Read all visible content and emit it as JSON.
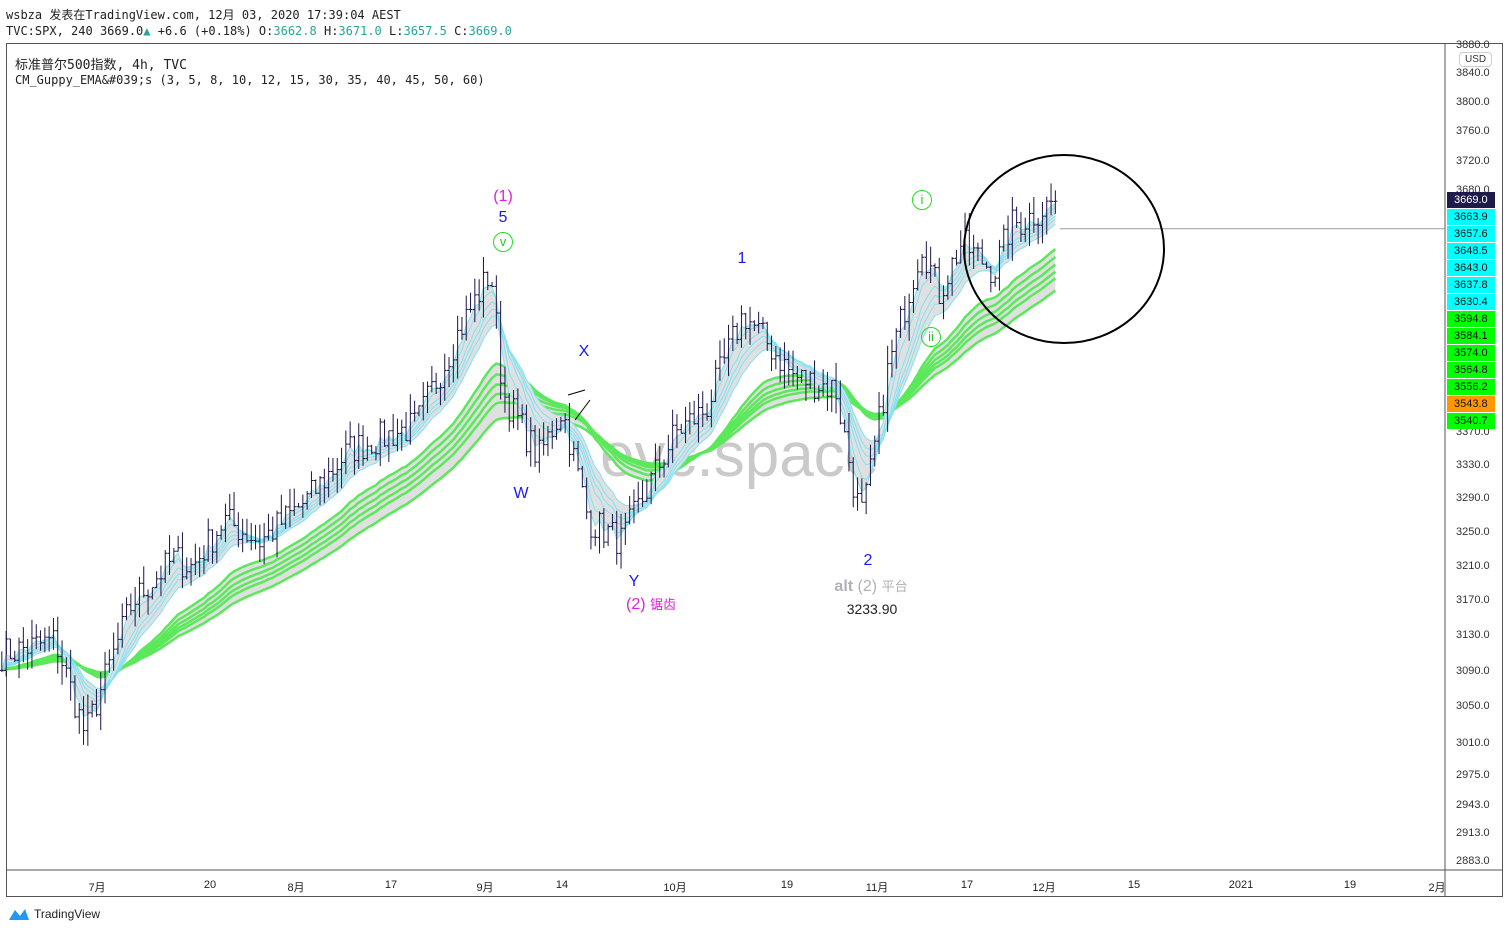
{
  "header": {
    "line1": "wsbza 发表在TradingView.com, 12月 03, 2020 17:39:04 AEST",
    "symbol": "TVC:SPX, 240",
    "last": "3669.0",
    "change": "+6.6 (+0.18%)",
    "o_label": "O:",
    "o": "3662.8",
    "h_label": "H:",
    "h": "3671.0",
    "l_label": "L:",
    "l": "3657.5",
    "c_label": "C:",
    "c": "3669.0"
  },
  "legend": {
    "title": "标准普尔500指数, 4h, TVC",
    "indicator": "CM_Guppy_EMA&#039;s (3, 5, 8, 10, 12, 15, 30, 35, 40, 45, 50, 60)"
  },
  "currency": "USD",
  "watermark": "evc.space",
  "footer": {
    "brand": "TradingView"
  },
  "colors": {
    "bar": "#1a1446",
    "short_ema": "#7fe3f5",
    "long_ema": "#5be85b",
    "ribbon_fill": "#e0e0e0",
    "bear": "#f04040",
    "last_price_bg": "#1e1a4a",
    "cyan_tag": "#00ffff",
    "green_tag": "#00ff00",
    "orange_tag": "#ff9800"
  },
  "price_tags": [
    {
      "v": "3669.0",
      "bg": "#1e1a4a",
      "fg": "#fff"
    },
    {
      "v": "3663.9",
      "bg": "#00ffff"
    },
    {
      "v": "3657.6",
      "bg": "#00ffff"
    },
    {
      "v": "3648.5",
      "bg": "#00ffff"
    },
    {
      "v": "3643.0",
      "bg": "#00ffff"
    },
    {
      "v": "3637.8",
      "bg": "#00ffff"
    },
    {
      "v": "3630.4",
      "bg": "#00ffff"
    },
    {
      "v": "3594.8",
      "bg": "#00ff00"
    },
    {
      "v": "3584.1",
      "bg": "#00ff00"
    },
    {
      "v": "3574.0",
      "bg": "#00ff00"
    },
    {
      "v": "3564.8",
      "bg": "#00ff00"
    },
    {
      "v": "3556.2",
      "bg": "#00ff00"
    },
    {
      "v": "3543.8",
      "bg": "#ff9800"
    },
    {
      "v": "3540.7",
      "bg": "#00ff00"
    }
  ],
  "annotations": {
    "w1": "(1)",
    "w5": "5",
    "wv": "v",
    "wX": "X",
    "wW": "W",
    "wY": "Y",
    "w2p": "(2)",
    "w2p_sub": "锯齿",
    "w1b": "1",
    "w2": "2",
    "alt": "alt",
    "alt2": "(2)",
    "alt_sub": "平台",
    "low": "3233.90",
    "wi": "i",
    "wii": "ii"
  },
  "chart_data": {
    "type": "candlestick-ohlc-bars",
    "title": "标准普尔500指数, 4h, TVC",
    "y_scale": "log",
    "ylim": [
      2883,
      3880
    ],
    "y_ticks": [
      "3880.0",
      "3840.0",
      "3800.0",
      "3760.0",
      "3720.0",
      "3680.0",
      "3370.0",
      "3330.0",
      "3290.0",
      "3250.0",
      "3210.0",
      "3170.0",
      "3130.0",
      "3090.0",
      "3050.0",
      "3010.0",
      "2975.0",
      "2943.0",
      "2913.0",
      "2883.0"
    ],
    "x_ticks": [
      {
        "label": "7月",
        "date": "2020-07-01"
      },
      {
        "label": "20",
        "date": "2020-07-20"
      },
      {
        "label": "8月",
        "date": "2020-08-01"
      },
      {
        "label": "17",
        "date": "2020-08-17"
      },
      {
        "label": "9月",
        "date": "2020-09-01"
      },
      {
        "label": "14",
        "date": "2020-09-14"
      },
      {
        "label": "10月",
        "date": "2020-10-01"
      },
      {
        "label": "19",
        "date": "2020-10-19"
      },
      {
        "label": "11月",
        "date": "2020-11-01"
      },
      {
        "label": "17",
        "date": "2020-11-17"
      },
      {
        "label": "12月",
        "date": "2020-12-01"
      },
      {
        "label": "15",
        "date": "2020-12-15"
      },
      {
        "label": "2021",
        "date": "2021-01-01"
      },
      {
        "label": "19",
        "date": "2021-01-19"
      },
      {
        "label": "2月",
        "date": "2021-02-01"
      }
    ],
    "approx_close": [
      [
        "2020-06-15",
        3110
      ],
      [
        "2020-06-24",
        3125
      ],
      [
        "2020-06-29",
        3020
      ],
      [
        "2020-07-07",
        3170
      ],
      [
        "2020-07-14",
        3220
      ],
      [
        "2020-07-17",
        3210
      ],
      [
        "2020-07-22",
        3265
      ],
      [
        "2020-07-27",
        3240
      ],
      [
        "2020-08-03",
        3290
      ],
      [
        "2020-08-10",
        3350
      ],
      [
        "2020-08-21",
        3380
      ],
      [
        "2020-08-28",
        3500
      ],
      [
        "2020-09-02",
        3575
      ],
      [
        "2020-09-04",
        3420
      ],
      [
        "2020-09-10",
        3340
      ],
      [
        "2020-09-14",
        3400
      ],
      [
        "2020-09-18",
        3265
      ],
      [
        "2020-09-23",
        3240
      ],
      [
        "2020-10-01",
        3370
      ],
      [
        "2020-10-06",
        3400
      ],
      [
        "2020-10-12",
        3520
      ],
      [
        "2020-10-20",
        3440
      ],
      [
        "2020-10-26",
        3425
      ],
      [
        "2020-10-29",
        3290
      ],
      [
        "2020-10-30",
        3270
      ],
      [
        "2020-11-03",
        3450
      ],
      [
        "2020-11-09",
        3611
      ],
      [
        "2020-11-12",
        3545
      ],
      [
        "2020-11-16",
        3611
      ],
      [
        "2020-11-22",
        3575
      ],
      [
        "2020-11-25",
        3636
      ],
      [
        "2020-11-27",
        3640
      ],
      [
        "2020-12-03",
        3669
      ]
    ],
    "ema_lengths_short": [
      3,
      5,
      8,
      10,
      12,
      15
    ],
    "ema_lengths_long": [
      30,
      35,
      40,
      45,
      50,
      60
    ],
    "horizontal_level": 3630.4
  }
}
